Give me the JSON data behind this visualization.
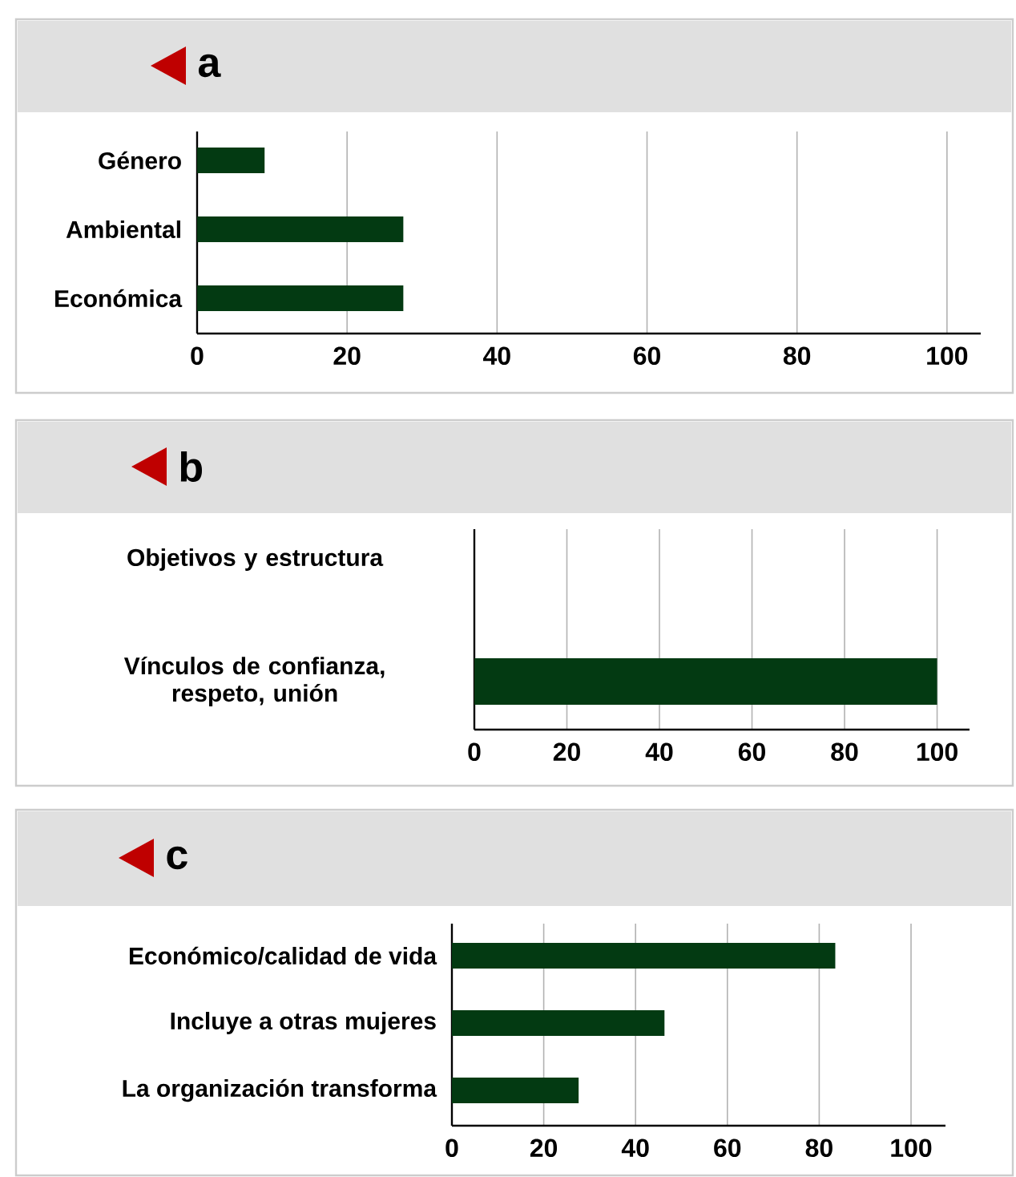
{
  "chart_data": [
    {
      "type": "bar",
      "orientation": "horizontal",
      "title": "a",
      "categories": [
        "Género",
        "Ambiental",
        "Económica"
      ],
      "values": [
        9,
        27.5,
        27.5
      ],
      "color": "#033a12",
      "xlim": [
        0,
        104.5
      ],
      "xticks": [
        0,
        20,
        40,
        60,
        80,
        100
      ],
      "grid": "x"
    },
    {
      "type": "bar",
      "orientation": "horizontal",
      "title": "b",
      "categories": [
        "Objetivos y estructura",
        "Vínculos de confianza, respeto, unión"
      ],
      "values": [
        0,
        100
      ],
      "color": "#033a12",
      "xlim": [
        0,
        107
      ],
      "xticks": [
        0,
        20,
        40,
        60,
        80,
        100
      ],
      "grid": "x"
    },
    {
      "type": "bar",
      "orientation": "horizontal",
      "title": "c",
      "categories": [
        "Económico/calidad de vida",
        "Incluye a otras mujeres",
        "La organización transforma"
      ],
      "values": [
        83.5,
        46.3,
        27.6
      ],
      "color": "#033a12",
      "xlim": [
        0,
        107.5
      ],
      "xticks": [
        0,
        20,
        40,
        60,
        80,
        100
      ],
      "grid": "x"
    }
  ]
}
